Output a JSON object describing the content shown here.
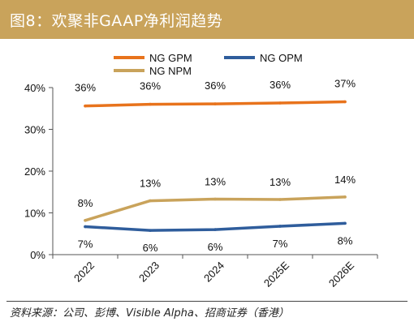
{
  "header": {
    "title": "图8：欢聚非GAAP净利润趋势"
  },
  "source": "资料来源：公司、彭博、Visible Alpha、招商证券（香港）",
  "colors": {
    "header_bg": "#c9a35b",
    "gpm": "#e8731c",
    "opm": "#2f5d9c",
    "npm": "#c9a35b"
  },
  "chart_data": {
    "type": "line",
    "categories": [
      "2022",
      "2023",
      "2024",
      "2025E",
      "2026E"
    ],
    "ylim": [
      0,
      40
    ],
    "yticks": [
      0,
      10,
      20,
      30,
      40
    ],
    "ytick_labels": [
      "0%",
      "10%",
      "20%",
      "30%",
      "40%"
    ],
    "grid": false,
    "series": [
      {
        "name": "NG GPM",
        "color": "#e8731c",
        "values": [
          35.6,
          36.0,
          36.1,
          36.3,
          36.6
        ],
        "labels": [
          "36%",
          "36%",
          "36%",
          "36%",
          "37%"
        ]
      },
      {
        "name": "NG OPM",
        "color": "#2f5d9c",
        "values": [
          6.7,
          5.8,
          6.0,
          6.8,
          7.5
        ],
        "labels": [
          "7%",
          "6%",
          "6%",
          "7%",
          "8%"
        ]
      },
      {
        "name": "NG NPM",
        "color": "#c9a35b",
        "values": [
          8.2,
          12.9,
          13.3,
          13.2,
          13.8
        ],
        "labels": [
          "8%",
          "13%",
          "13%",
          "13%",
          "14%"
        ]
      }
    ]
  }
}
